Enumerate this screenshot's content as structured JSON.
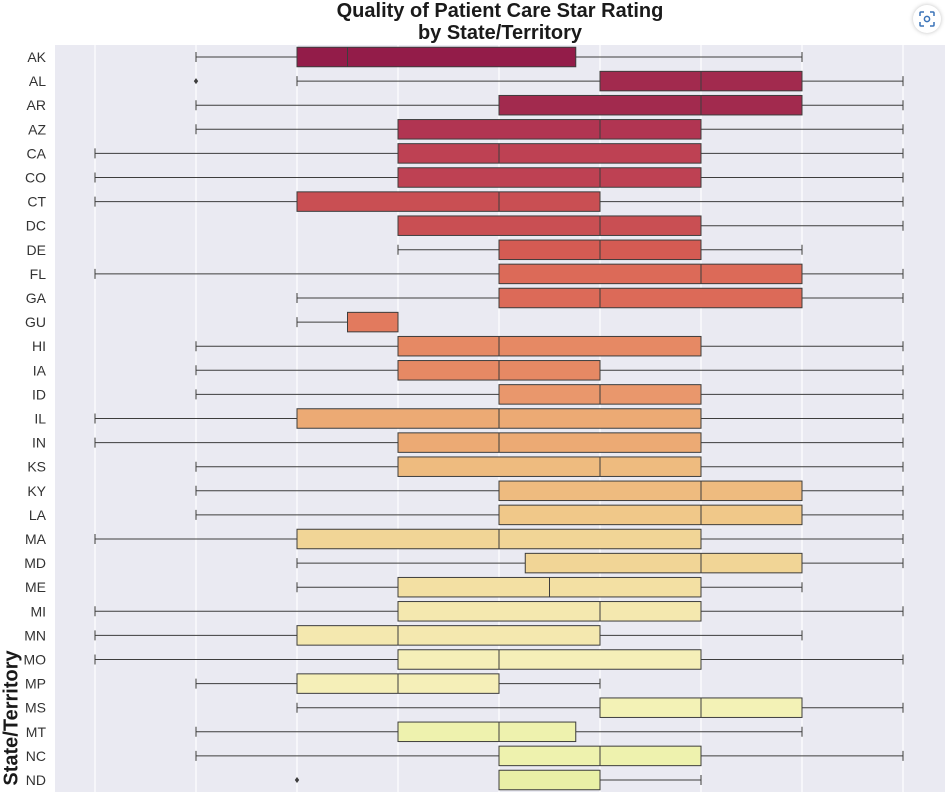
{
  "chart_data": {
    "type": "box",
    "title": [
      "Quality of Patient Care Star Rating",
      "by State/Territory"
    ],
    "ylabel": "State/Territory",
    "xlim": [
      0.7,
      5.0
    ],
    "grid": true,
    "orientation": "horizontal",
    "series": [
      {
        "state": "AK",
        "whislo": 2.0,
        "q1": 2.5,
        "med": 2.75,
        "q3": 3.88,
        "whishi": 5.0,
        "fliers": []
      },
      {
        "state": "AL",
        "whislo": 2.5,
        "q1": 4.0,
        "med": 4.5,
        "q3": 5.0,
        "whishi": 5.5,
        "fliers": [
          2.0
        ]
      },
      {
        "state": "AR",
        "whislo": 2.0,
        "q1": 3.5,
        "med": 4.5,
        "q3": 5.0,
        "whishi": 5.5,
        "fliers": []
      },
      {
        "state": "AZ",
        "whislo": 2.0,
        "q1": 3.0,
        "med": 4.0,
        "q3": 4.5,
        "whishi": 5.5,
        "fliers": []
      },
      {
        "state": "CA",
        "whislo": 1.5,
        "q1": 3.0,
        "med": 3.5,
        "q3": 4.5,
        "whishi": 5.5,
        "fliers": []
      },
      {
        "state": "CO",
        "whislo": 1.5,
        "q1": 3.0,
        "med": 4.0,
        "q3": 4.5,
        "whishi": 5.5,
        "fliers": []
      },
      {
        "state": "CT",
        "whislo": 1.5,
        "q1": 2.5,
        "med": 3.5,
        "q3": 4.0,
        "whishi": 5.5,
        "fliers": []
      },
      {
        "state": "DC",
        "whislo": 3.0,
        "q1": 3.0,
        "med": 4.0,
        "q3": 4.5,
        "whishi": 5.5,
        "fliers": []
      },
      {
        "state": "DE",
        "whislo": 3.0,
        "q1": 3.5,
        "med": 4.0,
        "q3": 4.5,
        "whishi": 5.0,
        "fliers": []
      },
      {
        "state": "FL",
        "whislo": 1.5,
        "q1": 3.5,
        "med": 4.5,
        "q3": 5.0,
        "whishi": 5.5,
        "fliers": []
      },
      {
        "state": "GA",
        "whislo": 2.5,
        "q1": 3.5,
        "med": 4.0,
        "q3": 5.0,
        "whishi": 5.5,
        "fliers": []
      },
      {
        "state": "GU",
        "whislo": 2.5,
        "q1": 2.75,
        "med": 2.75,
        "q3": 3.0,
        "whishi": 3.0,
        "fliers": []
      },
      {
        "state": "HI",
        "whislo": 2.0,
        "q1": 3.0,
        "med": 3.5,
        "q3": 4.5,
        "whishi": 5.5,
        "fliers": []
      },
      {
        "state": "IA",
        "whislo": 2.0,
        "q1": 3.0,
        "med": 3.5,
        "q3": 4.0,
        "whishi": 5.5,
        "fliers": []
      },
      {
        "state": "ID",
        "whislo": 2.0,
        "q1": 3.5,
        "med": 4.0,
        "q3": 4.5,
        "whishi": 5.5,
        "fliers": []
      },
      {
        "state": "IL",
        "whislo": 1.5,
        "q1": 2.5,
        "med": 3.5,
        "q3": 4.5,
        "whishi": 5.5,
        "fliers": []
      },
      {
        "state": "IN",
        "whislo": 1.5,
        "q1": 3.0,
        "med": 3.5,
        "q3": 4.5,
        "whishi": 5.5,
        "fliers": []
      },
      {
        "state": "KS",
        "whislo": 2.0,
        "q1": 3.0,
        "med": 4.0,
        "q3": 4.5,
        "whishi": 5.5,
        "fliers": []
      },
      {
        "state": "KY",
        "whislo": 2.0,
        "q1": 3.5,
        "med": 4.5,
        "q3": 5.0,
        "whishi": 5.5,
        "fliers": []
      },
      {
        "state": "LA",
        "whislo": 2.0,
        "q1": 3.5,
        "med": 4.5,
        "q3": 5.0,
        "whishi": 5.5,
        "fliers": []
      },
      {
        "state": "MA",
        "whislo": 1.5,
        "q1": 2.5,
        "med": 3.5,
        "q3": 4.5,
        "whishi": 5.5,
        "fliers": []
      },
      {
        "state": "MD",
        "whislo": 2.5,
        "q1": 3.63,
        "med": 4.5,
        "q3": 5.0,
        "whishi": 5.5,
        "fliers": []
      },
      {
        "state": "ME",
        "whislo": 2.5,
        "q1": 3.0,
        "med": 3.75,
        "q3": 4.5,
        "whishi": 5.0,
        "fliers": []
      },
      {
        "state": "MI",
        "whislo": 1.5,
        "q1": 3.0,
        "med": 4.0,
        "q3": 4.5,
        "whishi": 5.5,
        "fliers": []
      },
      {
        "state": "MN",
        "whislo": 1.5,
        "q1": 2.5,
        "med": 3.0,
        "q3": 4.0,
        "whishi": 5.0,
        "fliers": []
      },
      {
        "state": "MO",
        "whislo": 1.5,
        "q1": 3.0,
        "med": 3.5,
        "q3": 4.5,
        "whishi": 5.5,
        "fliers": []
      },
      {
        "state": "MP",
        "whislo": 2.0,
        "q1": 2.5,
        "med": 3.0,
        "q3": 3.5,
        "whishi": 4.0,
        "fliers": []
      },
      {
        "state": "MS",
        "whislo": 2.5,
        "q1": 4.0,
        "med": 4.5,
        "q3": 5.0,
        "whishi": 5.5,
        "fliers": []
      },
      {
        "state": "MT",
        "whislo": 2.0,
        "q1": 3.0,
        "med": 3.5,
        "q3": 3.88,
        "whishi": 5.0,
        "fliers": []
      },
      {
        "state": "NC",
        "whislo": 2.0,
        "q1": 3.5,
        "med": 4.0,
        "q3": 4.5,
        "whishi": 5.5,
        "fliers": []
      },
      {
        "state": "ND",
        "whislo": 3.5,
        "q1": 3.5,
        "med": 3.5,
        "q3": 4.0,
        "whishi": 4.5,
        "fliers": [
          2.5
        ]
      }
    ],
    "palette": [
      "#931c49",
      "#a22a4e",
      "#b13552",
      "#be4153",
      "#c94f53",
      "#d45b53",
      "#dc6a58",
      "#e27a5e",
      "#e68964",
      "#e9976c",
      "#ecaa74",
      "#eebb7f",
      "#f0c889",
      "#f1d596",
      "#f3e0a3",
      "#f4e8af",
      "#f5efb8",
      "#f3f2b6",
      "#eef2ae",
      "#e9f0a6"
    ]
  },
  "screenshot_icon": "screenshot-capture-icon"
}
